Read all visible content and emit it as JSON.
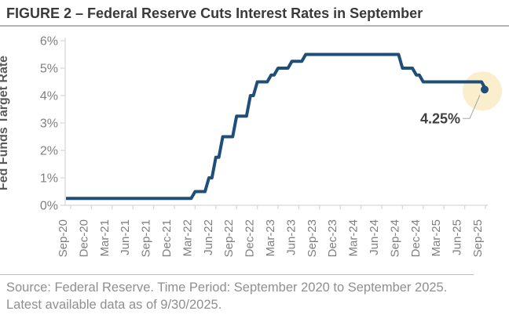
{
  "figure": {
    "title": "FIGURE 2 – Federal Reserve Cuts Interest Rates in September",
    "source_note": "Source: Federal Reserve. Time Period: September 2020 to September 2025. Latest available data as of 9/30/2025."
  },
  "chart_data": {
    "type": "line",
    "line_style": "step",
    "title": "",
    "xlabel": "",
    "ylabel": "Fed Funds Target Rate",
    "ylim": [
      0,
      6
    ],
    "x_unit": "months-since-Sep-2020",
    "xlim_months": [
      0,
      60
    ],
    "grid": false,
    "legend": "none",
    "y_tick_labels": [
      "0%",
      "1%",
      "2%",
      "3%",
      "4%",
      "5%",
      "6%"
    ],
    "x_tick_labels": [
      "Sep-20",
      "Dec-20",
      "Mar-21",
      "Jun-21",
      "Sep-21",
      "Dec-21",
      "Mar-22",
      "Jun-22",
      "Sep-22",
      "Dec-22",
      "Mar-23",
      "Jun-23",
      "Sep-23",
      "Dec-23",
      "Mar-24",
      "Jun-24",
      "Sep-24",
      "Dec-24",
      "Mar-25",
      "Jun-25",
      "Sep-25"
    ],
    "series": [
      {
        "name": "Fed Funds Target Rate",
        "points": [
          [
            0,
            0.25
          ],
          [
            18,
            0.5
          ],
          [
            20,
            1.0
          ],
          [
            21,
            1.75
          ],
          [
            22,
            2.5
          ],
          [
            24,
            3.25
          ],
          [
            26,
            4.0
          ],
          [
            27,
            4.5
          ],
          [
            29,
            4.75
          ],
          [
            30,
            5.0
          ],
          [
            32,
            5.25
          ],
          [
            34,
            5.5
          ],
          [
            48,
            5.0
          ],
          [
            50,
            4.75
          ],
          [
            51,
            4.5
          ],
          [
            60,
            4.25
          ]
        ]
      }
    ],
    "annotation": {
      "label": "4.25%",
      "x": 60,
      "y": 4.25
    },
    "colors": {
      "line": "#1f4e79",
      "marker": "#1f4e79",
      "highlight": "#faeecd",
      "annotation_text": "#404040",
      "callout": "#a6a6a6",
      "axis": "#d6d6d6",
      "tick_text": "#7f7f7f",
      "axis_title": "#595959"
    }
  }
}
